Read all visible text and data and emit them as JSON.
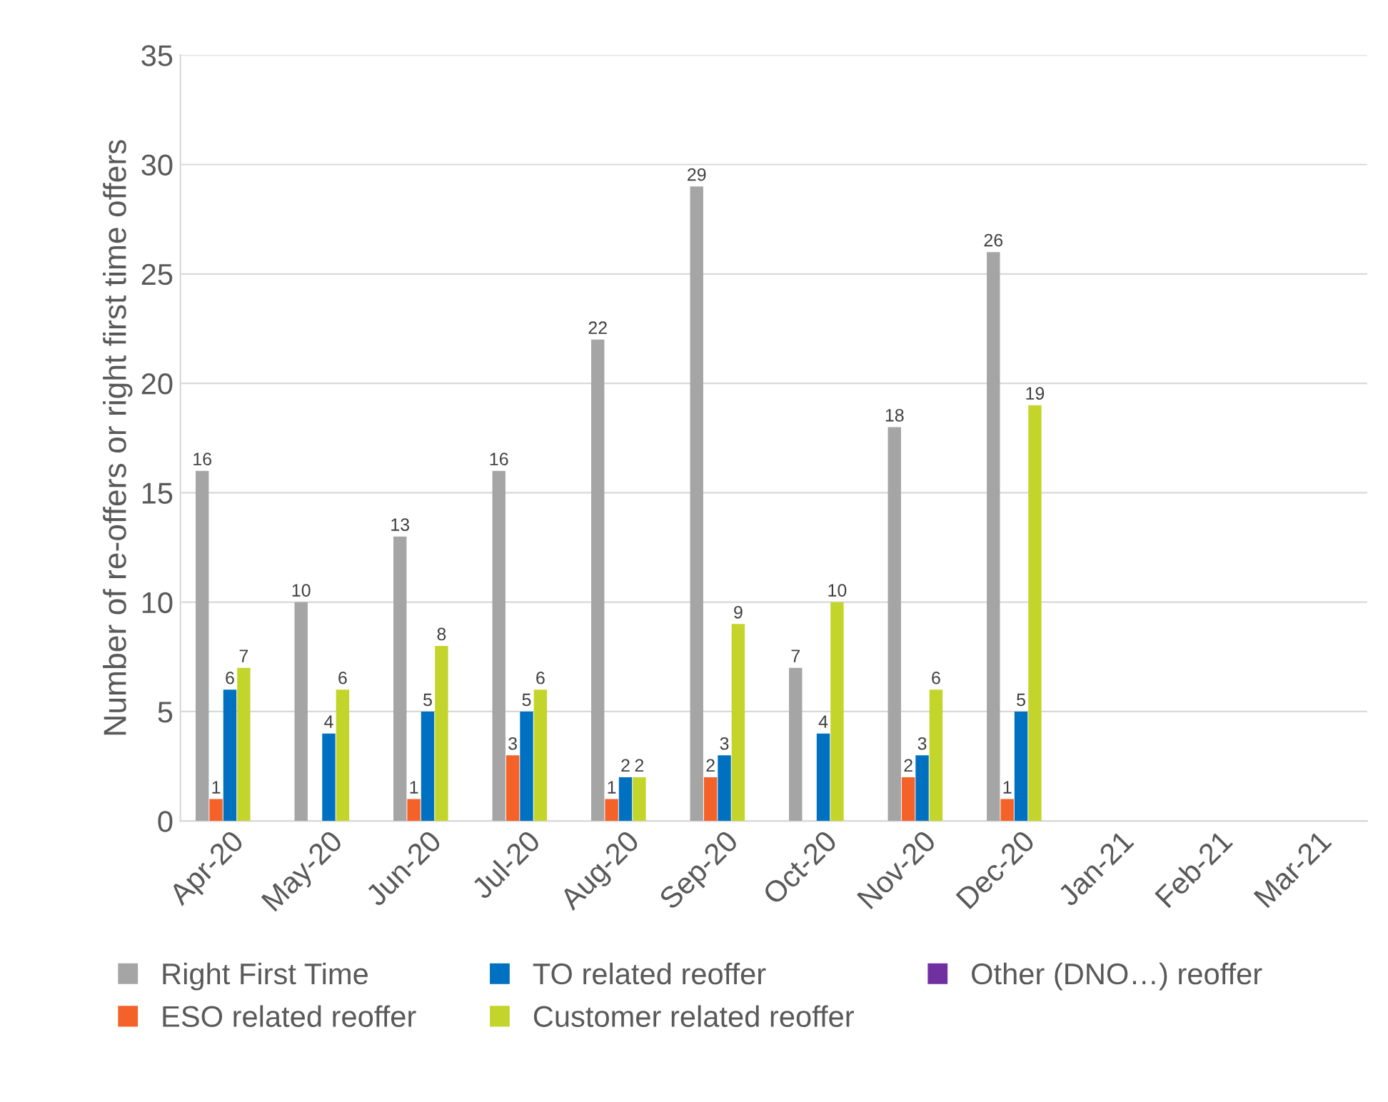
{
  "chart_data": {
    "type": "bar",
    "ylabel": "Number of re-offers or right first time offers",
    "categories": [
      "Apr-20",
      "May-20",
      "Jun-20",
      "Jul-20",
      "Aug-20",
      "Sep-20",
      "Oct-20",
      "Nov-20",
      "Dec-20",
      "Jan-21",
      "Feb-21",
      "Mar-21"
    ],
    "series": [
      {
        "name": "Right First Time",
        "color": "#a5a5a5",
        "values": [
          16,
          10,
          13,
          16,
          22,
          29,
          7,
          18,
          26,
          null,
          null,
          null
        ]
      },
      {
        "name": "ESO related reoffer",
        "color": "#f4622a",
        "values": [
          1,
          null,
          1,
          3,
          1,
          2,
          null,
          2,
          1,
          null,
          null,
          null
        ]
      },
      {
        "name": "TO related reoffer",
        "color": "#0070c0",
        "values": [
          6,
          4,
          5,
          5,
          2,
          3,
          4,
          3,
          5,
          null,
          null,
          null
        ]
      },
      {
        "name": "Customer related reoffer",
        "color": "#c3d52b",
        "values": [
          7,
          6,
          8,
          6,
          2,
          9,
          10,
          6,
          19,
          null,
          null,
          null
        ]
      },
      {
        "name": "Other (DNO…) reoffer",
        "color": "#7030a0",
        "values": [
          null,
          null,
          null,
          null,
          null,
          null,
          null,
          null,
          null,
          null,
          null,
          null
        ]
      }
    ],
    "ylim": [
      0,
      35
    ],
    "yticks": [
      0,
      5,
      10,
      15,
      20,
      25,
      30,
      35
    ],
    "grid": "y",
    "legend": "bottom",
    "data_labels": true
  }
}
